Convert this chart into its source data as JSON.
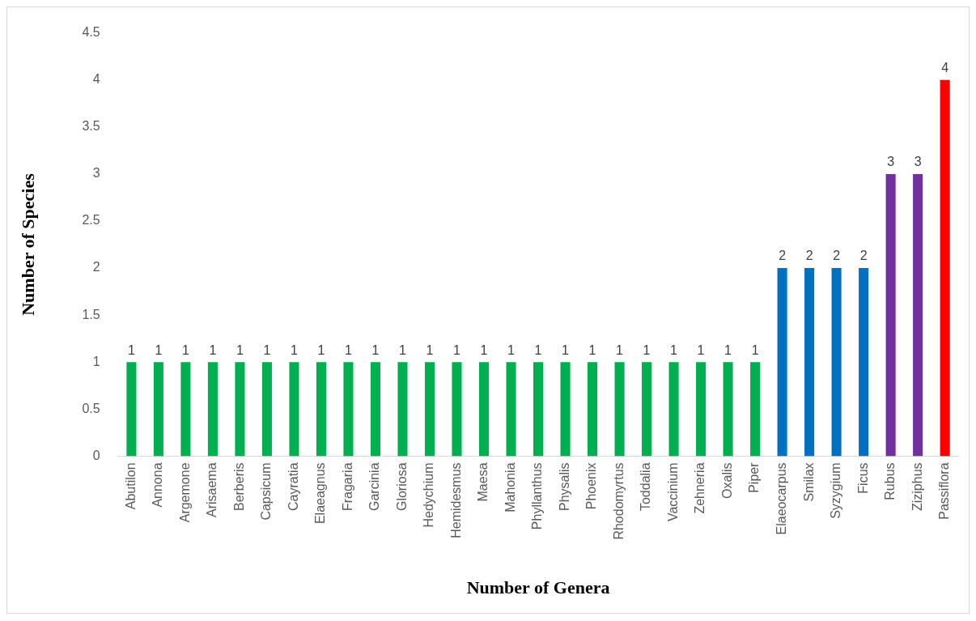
{
  "chart_data": {
    "type": "bar",
    "xlabel": "Number of Genera",
    "ylabel": "Number of Species",
    "categories": [
      "Abutilon",
      "Annona",
      "Argemone",
      "Arisaema",
      "Berberis",
      "Capsicum",
      "Cayratia",
      "Elaeagnus",
      "Fragaria",
      "Garcinia",
      "Gloriosa",
      "Hedychium",
      "Hemidesmus",
      "Maesa",
      "Mahonia",
      "Phyllanthus",
      "Physalis",
      "Phoenix",
      "Rhodomyrtus",
      "Toddalia",
      "Vaccinium",
      "Zehneria",
      "Oxalis",
      "Piper",
      "Elaeocarpus",
      "Smilax",
      "Syzygium",
      "Ficus",
      "Rubus",
      "Ziziphus",
      "Passiflora"
    ],
    "values": [
      1,
      1,
      1,
      1,
      1,
      1,
      1,
      1,
      1,
      1,
      1,
      1,
      1,
      1,
      1,
      1,
      1,
      1,
      1,
      1,
      1,
      1,
      1,
      1,
      2,
      2,
      2,
      2,
      3,
      3,
      4
    ],
    "colors": [
      "#00b050",
      "#00b050",
      "#00b050",
      "#00b050",
      "#00b050",
      "#00b050",
      "#00b050",
      "#00b050",
      "#00b050",
      "#00b050",
      "#00b050",
      "#00b050",
      "#00b050",
      "#00b050",
      "#00b050",
      "#00b050",
      "#00b050",
      "#00b050",
      "#00b050",
      "#00b050",
      "#00b050",
      "#00b050",
      "#00b050",
      "#00b050",
      "#0070c0",
      "#0070c0",
      "#0070c0",
      "#0070c0",
      "#7030a0",
      "#7030a0",
      "#ff0000"
    ],
    "ylim": [
      0,
      4.5
    ],
    "yticks": [
      0,
      0.5,
      1,
      1.5,
      2,
      2.5,
      3,
      3.5,
      4,
      4.5
    ],
    "grid": false,
    "legend": false,
    "data_labels": true
  }
}
